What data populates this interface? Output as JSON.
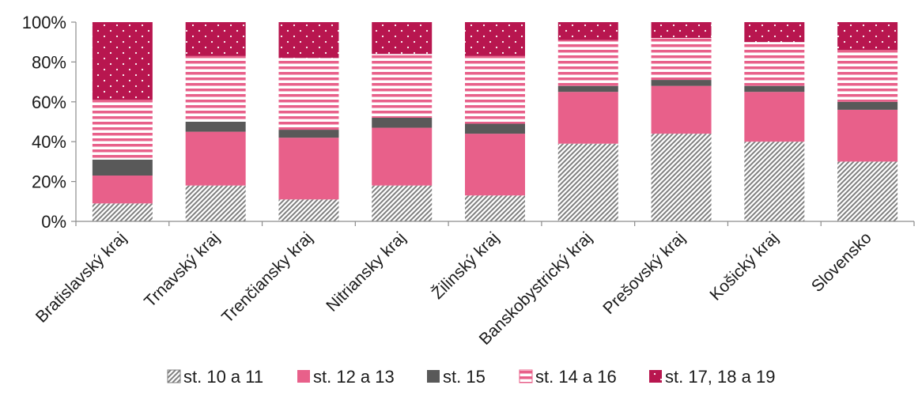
{
  "chart_data": {
    "type": "bar",
    "stacked": true,
    "categories": [
      "Bratislavský kraj",
      "Trnavský kraj",
      "Trenčiansky kraj",
      "Nitriansky kraj",
      "Žilinský kraj",
      "Banskobystrický kraj",
      "Prešovský kraj",
      "Košický kraj",
      "Slovensko"
    ],
    "series": [
      {
        "name": "st. 10 a 11",
        "values": [
          9,
          18,
          11,
          18,
          13,
          39,
          44,
          40,
          30
        ],
        "color": "#7f7f7f",
        "pattern": "diagonal-hatch"
      },
      {
        "name": "st. 12 a 13",
        "values": [
          14,
          27,
          31,
          29,
          31,
          26,
          24,
          25,
          26
        ],
        "color": "#e8608a",
        "pattern": "solid"
      },
      {
        "name": "st. 15",
        "values": [
          8,
          5,
          4,
          5,
          5,
          3,
          3,
          3,
          4
        ],
        "color": "#595959",
        "pattern": "solid"
      },
      {
        "name": "st. 14 a 16",
        "values": [
          30,
          33,
          36,
          32,
          34,
          23,
          21,
          22,
          26
        ],
        "color": "#e8608a",
        "pattern": "horizontal-stripes"
      },
      {
        "name": "st. 17, 18 a 19",
        "values": [
          39,
          17,
          18,
          16,
          17,
          9,
          8,
          10,
          14
        ],
        "color": "#b8164f",
        "pattern": "dots"
      }
    ],
    "y_ticks": [
      "0%",
      "20%",
      "40%",
      "60%",
      "80%",
      "100%"
    ],
    "ylim": [
      0,
      100
    ],
    "legend_position": "bottom",
    "grid": false
  }
}
